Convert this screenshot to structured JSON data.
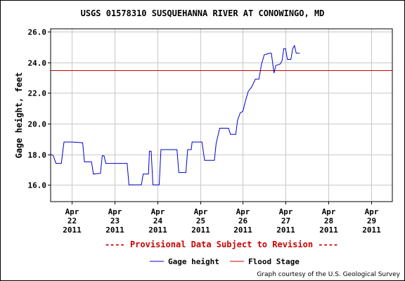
{
  "chart_data": {
    "type": "line",
    "title": "USGS 01578310 SUSQUEHANNA RIVER AT CONOWINGO, MD",
    "ylabel": "Gage height, feet",
    "xlabel": "",
    "ylim": [
      14.9,
      26.2
    ],
    "yticks": [
      16.0,
      18.0,
      20.0,
      22.0,
      24.0,
      26.0
    ],
    "ytick_labels": [
      "16.0",
      "18.0",
      "20.0",
      "22.0",
      "24.0",
      "26.0"
    ],
    "xlim": [
      "2011-04-21 12:00",
      "2011-04-29 12:00"
    ],
    "xticks": [
      {
        "at": "2011-04-22",
        "lines": [
          "Apr",
          "22",
          "2011"
        ]
      },
      {
        "at": "2011-04-23",
        "lines": [
          "Apr",
          "23",
          "2011"
        ]
      },
      {
        "at": "2011-04-24",
        "lines": [
          "Apr",
          "24",
          "2011"
        ]
      },
      {
        "at": "2011-04-25",
        "lines": [
          "Apr",
          "25",
          "2011"
        ]
      },
      {
        "at": "2011-04-26",
        "lines": [
          "Apr",
          "26",
          "2011"
        ]
      },
      {
        "at": "2011-04-27",
        "lines": [
          "Apr",
          "27",
          "2011"
        ]
      },
      {
        "at": "2011-04-28",
        "lines": [
          "Apr",
          "28",
          "2011"
        ]
      },
      {
        "at": "2011-04-29",
        "lines": [
          "Apr",
          "29",
          "2011"
        ]
      }
    ],
    "grid": true,
    "series": [
      {
        "name": "Gage height",
        "color": "#0000cc",
        "points": [
          [
            "2011-04-21 12:00",
            18.0
          ],
          [
            "2011-04-21 13:30",
            17.9
          ],
          [
            "2011-04-21 15:00",
            17.4
          ],
          [
            "2011-04-21 18:00",
            17.4
          ],
          [
            "2011-04-21 19:30",
            18.8
          ],
          [
            "2011-04-22 00:00",
            18.8
          ],
          [
            "2011-04-22 06:00",
            18.75
          ],
          [
            "2011-04-22 07:00",
            17.5
          ],
          [
            "2011-04-22 11:00",
            17.5
          ],
          [
            "2011-04-22 12:00",
            16.7
          ],
          [
            "2011-04-22 16:00",
            16.75
          ],
          [
            "2011-04-22 17:00",
            17.9
          ],
          [
            "2011-04-22 18:00",
            17.9
          ],
          [
            "2011-04-22 19:00",
            17.4
          ],
          [
            "2011-04-23 00:00",
            17.4
          ],
          [
            "2011-04-23 07:00",
            17.4
          ],
          [
            "2011-04-23 08:00",
            16.0
          ],
          [
            "2011-04-23 15:00",
            16.0
          ],
          [
            "2011-04-23 16:00",
            16.7
          ],
          [
            "2011-04-23 19:00",
            16.7
          ],
          [
            "2011-04-23 19:30",
            18.2
          ],
          [
            "2011-04-23 20:30",
            18.2
          ],
          [
            "2011-04-23 21:30",
            16.0
          ],
          [
            "2011-04-24 01:00",
            16.0
          ],
          [
            "2011-04-24 02:00",
            18.3
          ],
          [
            "2011-04-24 11:00",
            18.3
          ],
          [
            "2011-04-24 12:00",
            16.8
          ],
          [
            "2011-04-24 16:00",
            16.8
          ],
          [
            "2011-04-24 17:00",
            18.3
          ],
          [
            "2011-04-24 19:00",
            18.3
          ],
          [
            "2011-04-24 19:30",
            18.8
          ],
          [
            "2011-04-25 01:00",
            18.8
          ],
          [
            "2011-04-25 02:30",
            17.6
          ],
          [
            "2011-04-25 08:00",
            17.6
          ],
          [
            "2011-04-25 09:00",
            18.7
          ],
          [
            "2011-04-25 11:00",
            19.7
          ],
          [
            "2011-04-25 16:00",
            19.7
          ],
          [
            "2011-04-25 17:00",
            19.3
          ],
          [
            "2011-04-25 20:00",
            19.3
          ],
          [
            "2011-04-25 21:00",
            20.2
          ],
          [
            "2011-04-25 22:30",
            20.7
          ],
          [
            "2011-04-26 00:00",
            20.8
          ],
          [
            "2011-04-26 01:30",
            21.5
          ],
          [
            "2011-04-26 03:00",
            22.1
          ],
          [
            "2011-04-26 05:00",
            22.4
          ],
          [
            "2011-04-26 07:00",
            22.9
          ],
          [
            "2011-04-26 09:00",
            22.9
          ],
          [
            "2011-04-26 10:30",
            23.9
          ],
          [
            "2011-04-26 12:00",
            24.5
          ],
          [
            "2011-04-26 15:00",
            24.6
          ],
          [
            "2011-04-26 16:00",
            24.6
          ],
          [
            "2011-04-26 17:30",
            23.3
          ],
          [
            "2011-04-26 18:30",
            23.8
          ],
          [
            "2011-04-26 21:00",
            23.9
          ],
          [
            "2011-04-26 22:00",
            24.1
          ],
          [
            "2011-04-26 23:00",
            24.9
          ],
          [
            "2011-04-27 00:00",
            24.9
          ],
          [
            "2011-04-27 01:00",
            24.2
          ],
          [
            "2011-04-27 03:00",
            24.2
          ],
          [
            "2011-04-27 04:00",
            24.9
          ],
          [
            "2011-04-27 05:00",
            25.1
          ],
          [
            "2011-04-27 06:00",
            24.6
          ],
          [
            "2011-04-27 08:00",
            24.6
          ]
        ]
      },
      {
        "name": "Flood Stage",
        "color": "#cc0000",
        "value": 23.5
      }
    ],
    "provisional": "---- Provisional Data Subject to Revision ----",
    "legend_position": "bottom-center",
    "credit": "Graph courtesy of the U.S. Geological Survey"
  }
}
